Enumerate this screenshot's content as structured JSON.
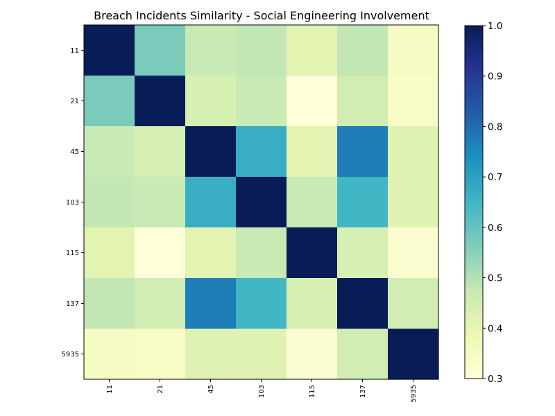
{
  "chart_data": {
    "type": "heatmap",
    "title": "Breach Incidents Similarity - Social Engineering Involvement",
    "x_labels": [
      "11",
      "21",
      "45",
      "103",
      "115",
      "137",
      "5935"
    ],
    "y_labels": [
      "11",
      "21",
      "45",
      "103",
      "115",
      "137",
      "5935"
    ],
    "values": [
      [
        1.0,
        0.57,
        0.47,
        0.48,
        0.41,
        0.48,
        0.35
      ],
      [
        0.57,
        1.0,
        0.44,
        0.47,
        0.3,
        0.45,
        0.34
      ],
      [
        0.47,
        0.44,
        1.0,
        0.67,
        0.41,
        0.77,
        0.42
      ],
      [
        0.48,
        0.47,
        0.67,
        1.0,
        0.47,
        0.65,
        0.42
      ],
      [
        0.41,
        0.3,
        0.41,
        0.47,
        1.0,
        0.44,
        0.32
      ],
      [
        0.48,
        0.45,
        0.77,
        0.65,
        0.44,
        1.0,
        0.45
      ],
      [
        0.35,
        0.34,
        0.42,
        0.42,
        0.32,
        0.45,
        1.0
      ]
    ],
    "colorbar": {
      "min": 0.3,
      "max": 1.0,
      "ticks": [
        "0.3",
        "0.4",
        "0.5",
        "0.6",
        "0.7",
        "0.8",
        "0.9",
        "1.0"
      ],
      "colormap": "YlGnBu"
    },
    "colormap_stops": [
      "#ffffd9",
      "#edf8b1",
      "#c7e9b4",
      "#7fcdbb",
      "#41b6c4",
      "#1d91c0",
      "#225ea8",
      "#253494",
      "#081d58"
    ],
    "grid": false
  }
}
